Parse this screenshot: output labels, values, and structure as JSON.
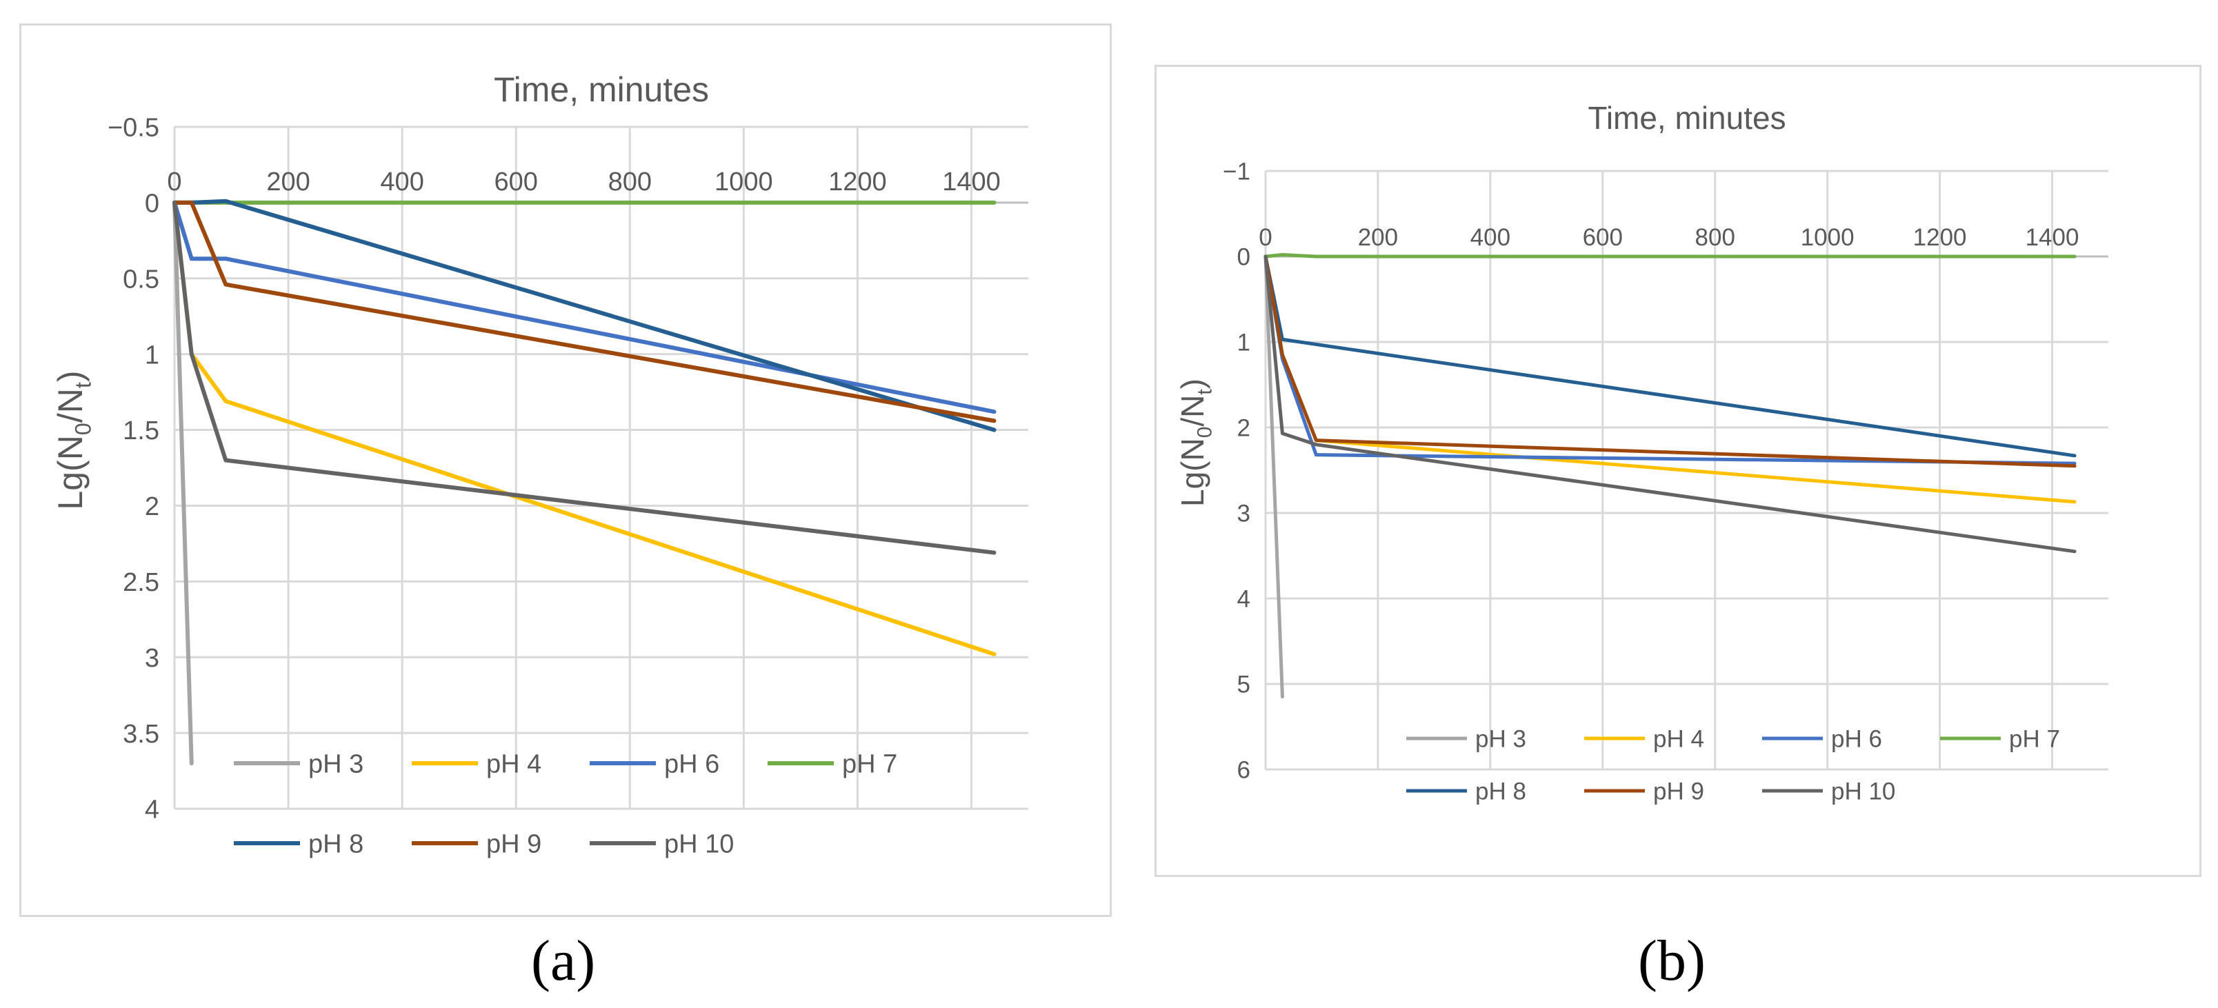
{
  "captions": {
    "a": "(a)",
    "b": "(b)"
  },
  "chart_data": [
    {
      "id": "a",
      "type": "line",
      "title": "Time, minutes",
      "xlabel": "Time, minutes",
      "ylabel_main": "Lg(N",
      "ylabel_sub0": "0",
      "ylabel_mid": "/N",
      "ylabel_sub1": "t",
      "ylabel_end": ")",
      "y_inverted": true,
      "xlim": [
        0,
        1500
      ],
      "ylim": [
        -0.5,
        4
      ],
      "x_ticks": [
        0,
        200,
        400,
        600,
        800,
        1000,
        1200,
        1400
      ],
      "x_tick_labels": [
        "0",
        "200",
        "400",
        "600",
        "800",
        "1000",
        "1200",
        "1400"
      ],
      "y_ticks": [
        -0.5,
        0,
        0.5,
        1,
        1.5,
        2,
        2.5,
        3,
        3.5,
        4
      ],
      "y_tick_labels": [
        "−0.5",
        "0",
        "0.5",
        "1",
        "1.5",
        "2",
        "2.5",
        "3",
        "3.5",
        "4"
      ],
      "grid": true,
      "legend_position": "bottom-inside",
      "series": [
        {
          "name": "pH 3",
          "color": "#a5a5a5",
          "x": [
            0,
            30
          ],
          "y": [
            0,
            3.7
          ]
        },
        {
          "name": "pH 4",
          "color": "#ffc000",
          "x": [
            0,
            30,
            90,
            1440
          ],
          "y": [
            0,
            1.0,
            1.31,
            2.98
          ]
        },
        {
          "name": "pH 6",
          "color": "#4472c4",
          "x": [
            0,
            30,
            90,
            1440
          ],
          "y": [
            0,
            0.37,
            0.37,
            1.38
          ]
        },
        {
          "name": "pH 7",
          "color": "#70ad47",
          "x": [
            0,
            30,
            90,
            1440
          ],
          "y": [
            0,
            0,
            0,
            0
          ]
        },
        {
          "name": "pH 8",
          "color": "#255e91",
          "x": [
            0,
            30,
            90,
            1440
          ],
          "y": [
            0,
            0,
            -0.01,
            1.5
          ]
        },
        {
          "name": "pH 9",
          "color": "#9e480e",
          "x": [
            0,
            30,
            90,
            1440
          ],
          "y": [
            0,
            0,
            0.54,
            1.44
          ]
        },
        {
          "name": "pH 10",
          "color": "#636363",
          "x": [
            0,
            30,
            90,
            1440
          ],
          "y": [
            0,
            1.0,
            1.7,
            2.31
          ]
        }
      ]
    },
    {
      "id": "b",
      "type": "line",
      "title": "Time, minutes",
      "xlabel": "Time, minutes",
      "ylabel_main": "Lg(N",
      "ylabel_sub0": "0",
      "ylabel_mid": "/N",
      "ylabel_sub1": "t",
      "ylabel_end": ")",
      "y_inverted": true,
      "xlim": [
        0,
        1500
      ],
      "ylim": [
        -1,
        6
      ],
      "x_ticks": [
        0,
        200,
        400,
        600,
        800,
        1000,
        1200,
        1400
      ],
      "x_tick_labels": [
        "0",
        "200",
        "400",
        "600",
        "800",
        "1000",
        "1200",
        "1400"
      ],
      "y_ticks": [
        -1,
        0,
        1,
        2,
        3,
        4,
        5,
        6
      ],
      "y_tick_labels": [
        "−1",
        "0",
        "1",
        "2",
        "3",
        "4",
        "5",
        "6"
      ],
      "grid": true,
      "legend_position": "bottom-inside",
      "series": [
        {
          "name": "pH 3",
          "color": "#a5a5a5",
          "x": [
            0,
            30
          ],
          "y": [
            0,
            5.15
          ]
        },
        {
          "name": "pH 4",
          "color": "#ffc000",
          "x": [
            0,
            30,
            90,
            1440
          ],
          "y": [
            0,
            1.15,
            2.15,
            2.87
          ]
        },
        {
          "name": "pH 6",
          "color": "#4472c4",
          "x": [
            0,
            30,
            90,
            1440
          ],
          "y": [
            0,
            1.2,
            2.32,
            2.42
          ]
        },
        {
          "name": "pH 7",
          "color": "#70ad47",
          "x": [
            0,
            30,
            90,
            1440
          ],
          "y": [
            0,
            -0.02,
            0,
            0
          ]
        },
        {
          "name": "pH 8",
          "color": "#255e91",
          "x": [
            0,
            30,
            1440
          ],
          "y": [
            0,
            0.97,
            2.33
          ]
        },
        {
          "name": "pH 9",
          "color": "#9e480e",
          "x": [
            0,
            30,
            90,
            1440
          ],
          "y": [
            0,
            1.15,
            2.15,
            2.45
          ]
        },
        {
          "name": "pH 10",
          "color": "#636363",
          "x": [
            0,
            30,
            90,
            1440
          ],
          "y": [
            0,
            2.07,
            2.2,
            3.45
          ]
        }
      ]
    }
  ]
}
